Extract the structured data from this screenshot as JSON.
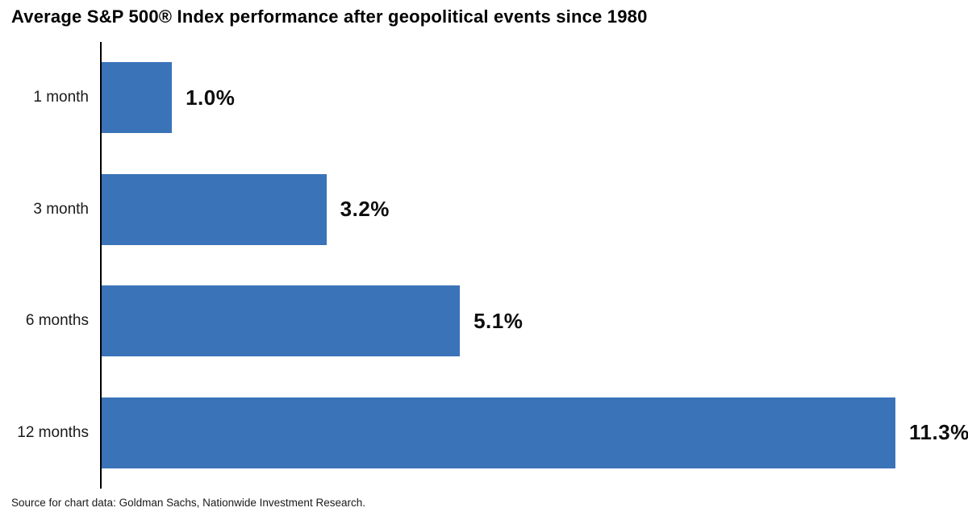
{
  "title": "Average S&P 500® Index performance after geopolitical events since 1980",
  "source": "Source for chart data: Goldman Sachs, Nationwide Investment Research.",
  "colors": {
    "bar": "#3a73b8",
    "axis": "#000000",
    "text": "#1a1a1a"
  },
  "chart_data": {
    "type": "bar",
    "orientation": "horizontal",
    "title": "Average S&P 500® Index performance after geopolitical events since 1980",
    "categories": [
      "1 month",
      "3 month",
      "6 months",
      "12 months"
    ],
    "values": [
      1.0,
      3.2,
      5.1,
      11.3
    ],
    "value_labels": [
      "1.0%",
      "3.2%",
      "5.1%",
      "11.3%"
    ],
    "xlabel": "",
    "ylabel": "",
    "xlim": [
      0,
      12.4
    ],
    "grid": false,
    "legend": false,
    "bar_color": "#3a73b8",
    "source_note": "Source for chart data: Goldman Sachs, Nationwide Investment Research."
  }
}
